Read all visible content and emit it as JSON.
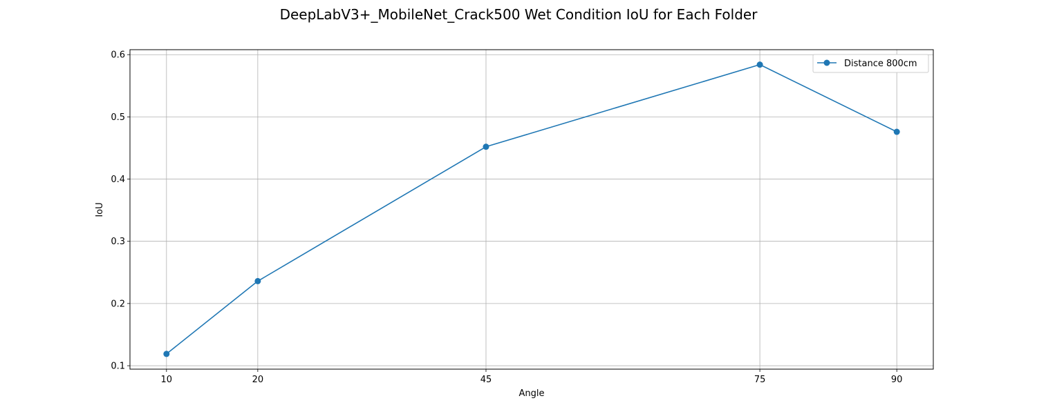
{
  "chart_data": {
    "type": "line",
    "title": "DeepLabV3+_MobileNet_Crack500 Wet Condition IoU for Each Folder",
    "xlabel": "Angle",
    "ylabel": "IoU",
    "x": [
      10,
      20,
      45,
      75,
      90
    ],
    "x_tick_labels": [
      "10",
      "20",
      "45",
      "75",
      "90"
    ],
    "y_ticks": [
      0.1,
      0.2,
      0.3,
      0.4,
      0.5,
      0.6
    ],
    "y_tick_labels": [
      "0.1",
      "0.2",
      "0.3",
      "0.4",
      "0.5",
      "0.6"
    ],
    "xlim": [
      6,
      94
    ],
    "ylim": [
      0.0945,
      0.608
    ],
    "grid": true,
    "legend_position": "upper right",
    "series": [
      {
        "name": "Distance 800cm",
        "color": "#1f77b4",
        "marker": "circle",
        "values": [
          0.119,
          0.236,
          0.452,
          0.584,
          0.476
        ]
      }
    ]
  }
}
